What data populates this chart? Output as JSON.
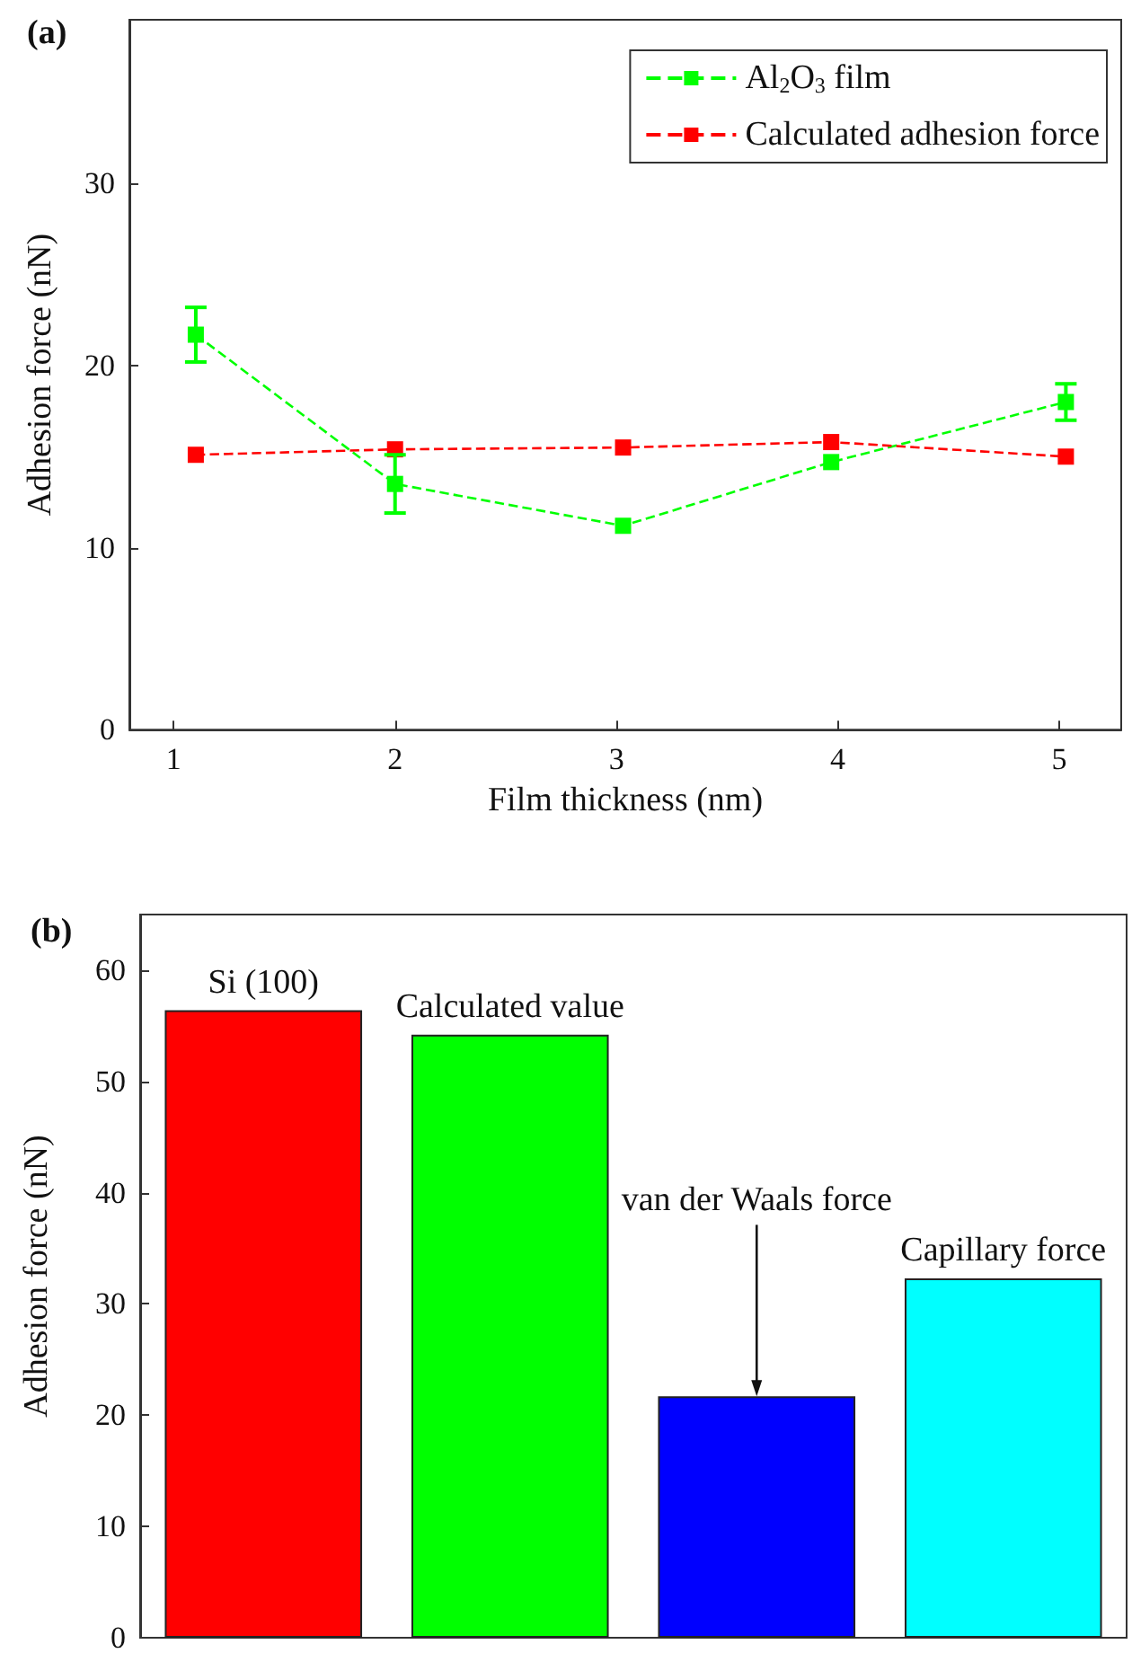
{
  "chart_data": [
    {
      "type": "line",
      "title": "(a)",
      "xlabel": "Film thickness (nm)",
      "ylabel": "Adhesion force (nN)",
      "xlim": [
        0.8,
        5.28
      ],
      "xticks": [
        1,
        2,
        3,
        4,
        5
      ],
      "ylim": [
        0,
        39
      ],
      "yticks": [
        0,
        10,
        20,
        30
      ],
      "legend": "top right",
      "marker": "square",
      "line_style": "dashed",
      "grid": false,
      "series": [
        {
          "name": "Al$_{2}$O$_{3}$ film",
          "color": "#00ff00",
          "x": [
            1.1,
            2.0,
            3.03,
            3.97,
            5.03
          ],
          "values": [
            21.7,
            13.5,
            11.2,
            14.7,
            18.0
          ],
          "errors": [
            1.5,
            1.6,
            null,
            null,
            1.0
          ]
        },
        {
          "name": "Calculated adhesion force",
          "color": "#ff0000",
          "x": [
            1.1,
            2.0,
            3.03,
            3.97,
            5.03
          ],
          "values": [
            15.1,
            15.4,
            15.5,
            15.8,
            15.0
          ]
        }
      ]
    },
    {
      "type": "bar",
      "title": "(b)",
      "ylabel": "Adhesion force (nN)",
      "categories": [
        null,
        null,
        null,
        null
      ],
      "values": [
        56.4,
        54.2,
        21.7,
        32.3
      ],
      "colors": [
        "#ff0000",
        "#00ff00",
        "#0000ff",
        "#00ffff"
      ],
      "ylim": [
        0,
        65
      ],
      "yticks": [
        0,
        10,
        20,
        30,
        40,
        50,
        60
      ],
      "grid": false,
      "annotations": [
        "Si (100)",
        "Calculated value",
        "van der Waals force",
        "Capillary force"
      ]
    }
  ]
}
